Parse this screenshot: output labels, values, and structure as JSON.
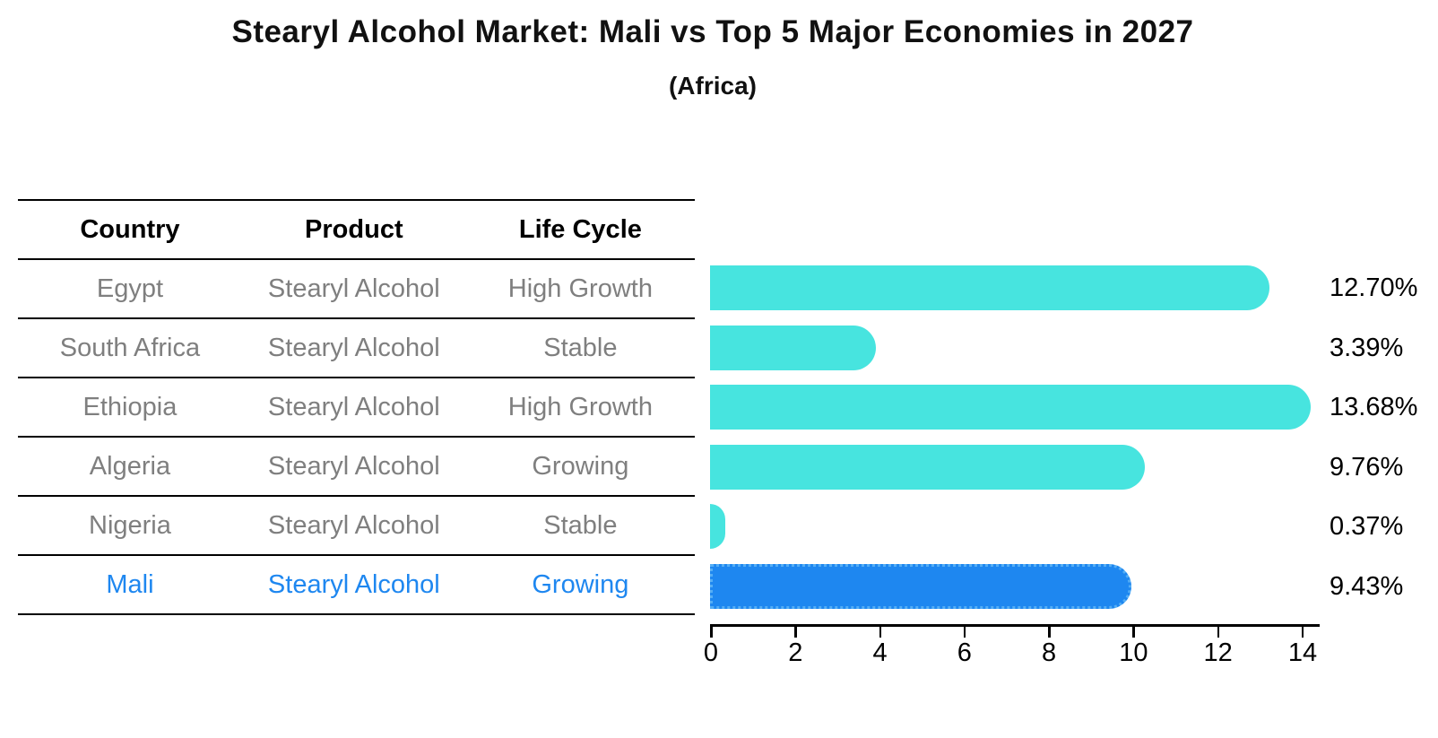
{
  "title": "Stearyl Alcohol Market: Mali vs Top 5 Major Economies in 2027",
  "subtitle": "(Africa)",
  "table": {
    "headers": [
      "Country",
      "Product",
      "Life Cycle"
    ],
    "rows": [
      {
        "country": "Egypt",
        "product": "Stearyl Alcohol",
        "life_cycle": "High Growth",
        "highlight": false
      },
      {
        "country": "South Africa",
        "product": "Stearyl Alcohol",
        "life_cycle": "Stable",
        "highlight": false
      },
      {
        "country": "Ethiopia",
        "product": "Stearyl Alcohol",
        "life_cycle": "High Growth",
        "highlight": false
      },
      {
        "country": "Algeria",
        "product": "Stearyl Alcohol",
        "life_cycle": "Growing",
        "highlight": false
      },
      {
        "country": "Nigeria",
        "product": "Stearyl Alcohol",
        "life_cycle": "Stable",
        "highlight": false
      },
      {
        "country": "Mali",
        "product": "Stearyl Alcohol",
        "life_cycle": "Growing",
        "highlight": true
      }
    ]
  },
  "chart_data": {
    "type": "bar",
    "orientation": "horizontal",
    "title": "Stearyl Alcohol Market: Mali vs Top 5 Major Economies in 2027",
    "subtitle": "(Africa)",
    "categories": [
      "Egypt",
      "South Africa",
      "Ethiopia",
      "Algeria",
      "Nigeria",
      "Mali"
    ],
    "values": [
      12.7,
      3.39,
      13.68,
      9.76,
      0.37,
      9.43
    ],
    "value_labels": [
      "12.70%",
      "3.39%",
      "13.68%",
      "9.76%",
      "0.37%",
      "9.43%"
    ],
    "unit": "%",
    "xlabel": "",
    "ylabel": "",
    "xlim": [
      0,
      14.4
    ],
    "xticks": [
      0,
      2,
      4,
      6,
      8,
      10,
      12,
      14
    ],
    "grid": false,
    "legend": false,
    "highlight_index": 5,
    "bar_color": "#47E4DF",
    "highlight_color": "#1E87F0",
    "highlight_border_color": "#55aef5"
  }
}
